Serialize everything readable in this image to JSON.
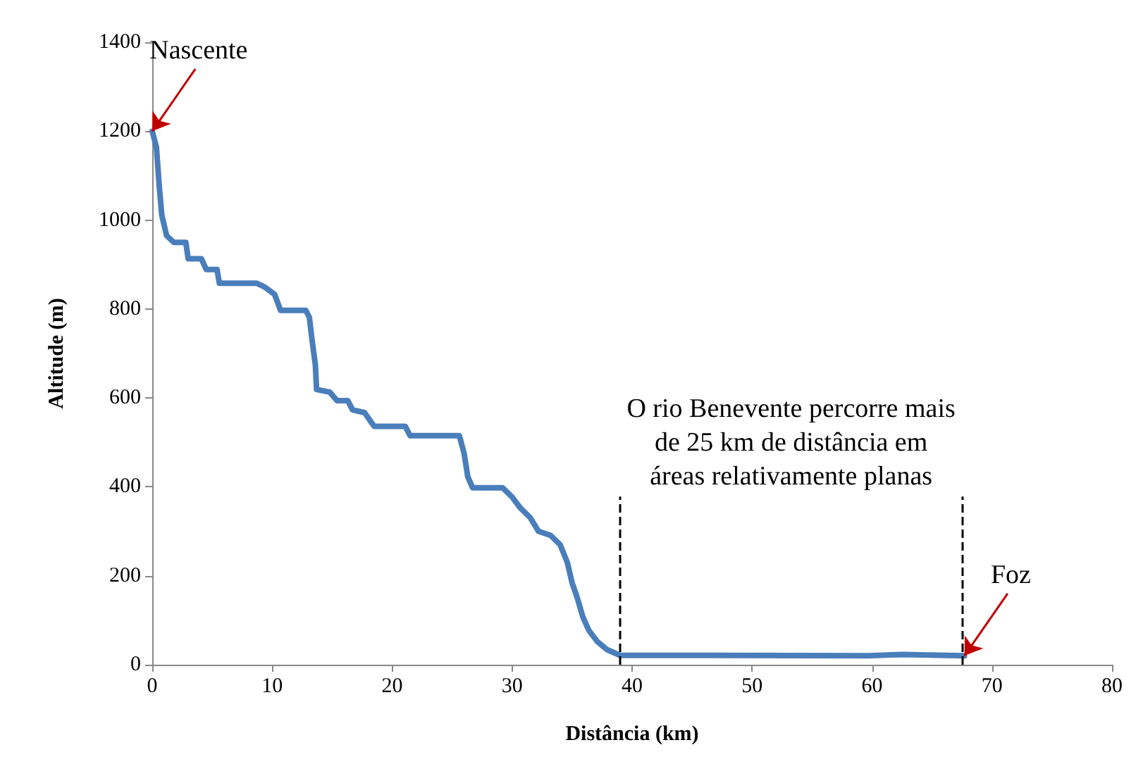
{
  "chart_data": {
    "type": "line",
    "xlabel": "Distância (km)",
    "ylabel": "Altitude (m)",
    "xlim": [
      0,
      80
    ],
    "xticks": [
      0,
      10,
      20,
      30,
      40,
      50,
      60,
      70,
      80
    ],
    "ylim": [
      0,
      1400
    ],
    "yticks": [
      0,
      200,
      400,
      600,
      800,
      1000,
      1200,
      1400
    ],
    "grid": false,
    "marker": "none",
    "line_style": "solid",
    "series": [
      {
        "color": "#4a7ebb",
        "x": [
          0,
          0.35,
          0.6,
          0.8,
          1.2,
          1.8,
          2.8,
          3.0,
          4.1,
          4.5,
          5.4,
          5.6,
          8.7,
          9.4,
          10.2,
          10.7,
          12.8,
          13.1,
          13.3,
          13.6,
          13.7,
          14.8,
          15.4,
          16.3,
          16.7,
          17.7,
          18.5,
          21.1,
          21.5,
          25.6,
          26,
          26.3,
          26.7,
          29.2,
          30,
          30.7,
          31.5,
          32.2,
          33.2,
          34,
          34.6,
          35,
          35.4,
          35.9,
          36.4,
          37.1,
          37.9,
          39,
          45.9,
          59.7,
          62.5,
          67.7
        ],
        "values": [
          1200,
          1164,
          1072,
          1011,
          965,
          950,
          950,
          913,
          913,
          889,
          889,
          858,
          858,
          849,
          833,
          797,
          797,
          781,
          735,
          674,
          619,
          613,
          594,
          594,
          573,
          567,
          536,
          536,
          515,
          515,
          475,
          423,
          398,
          398,
          377,
          352,
          331,
          300,
          291,
          270,
          230,
          184,
          153,
          107,
          77,
          52,
          34,
          21,
          21,
          20,
          23,
          20
        ]
      }
    ],
    "ref_lines": [
      {
        "axis": "x",
        "value": 39,
        "color": "#000000",
        "line_style": "dashed"
      },
      {
        "axis": "x",
        "value": 67.5,
        "color": "#000000",
        "line_style": "dashed"
      }
    ],
    "annotations": [
      "O rio Benevente percorre mais\nde 25 km de distância em\náreas relativamente planas",
      {
        "text": "Nascente",
        "x": 0,
        "y": 1200
      },
      {
        "text": "Foz",
        "x": 67.7,
        "y": 20
      }
    ]
  }
}
